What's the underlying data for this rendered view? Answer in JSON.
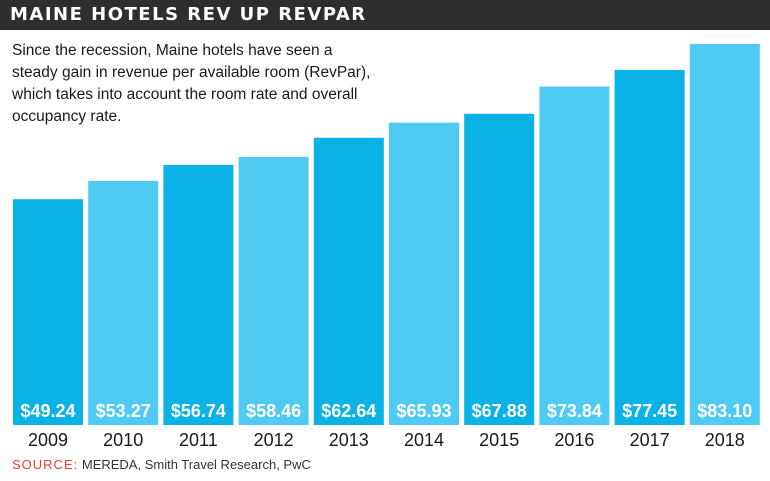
{
  "header": {
    "title": "MAINE HOTELS REV UP REVPAR"
  },
  "description": "Since the recession, Maine hotels have seen a steady gain in revenue per available room (RevPar), which takes into account the room rate and overall occupancy rate.",
  "source": {
    "label": "SOURCE:",
    "text": "MEREDA, Smith Travel Research, PwC"
  },
  "colors": {
    "bar_dark": "#0ab2e6",
    "bar_light": "#4fcbf3",
    "header_bg": "#2e2e2e",
    "source_label": "#e2402a"
  },
  "chart_data": {
    "type": "bar",
    "title": "MAINE HOTELS REV UP REVPAR",
    "categories": [
      "2009",
      "2010",
      "2011",
      "2012",
      "2013",
      "2014",
      "2015",
      "2016",
      "2017",
      "2018"
    ],
    "values": [
      49.24,
      53.27,
      56.74,
      58.46,
      62.64,
      65.93,
      67.88,
      73.84,
      77.45,
      83.1
    ],
    "value_labels": [
      "$49.24",
      "$53.27",
      "$56.74",
      "$58.46",
      "$62.64",
      "$65.93",
      "$67.88",
      "$73.84",
      "$77.45",
      "$83.10"
    ],
    "xlabel": "",
    "ylabel": "",
    "grid": false
  }
}
